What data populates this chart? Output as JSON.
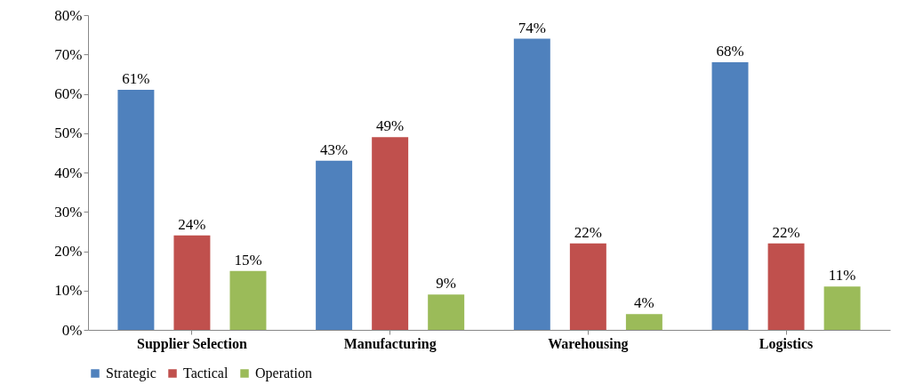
{
  "chart_data": {
    "type": "bar",
    "categories": [
      "Supplier Selection",
      "Manufacturing",
      "Warehousing",
      "Logistics"
    ],
    "series": [
      {
        "name": "Strategic",
        "color": "#4f81bd",
        "values": [
          61,
          43,
          74,
          68
        ],
        "value_labels": [
          "61%",
          "43%",
          "74%",
          "68%"
        ]
      },
      {
        "name": "Tactical",
        "color": "#c0504d",
        "values": [
          24,
          49,
          22,
          22
        ],
        "value_labels": [
          "24%",
          "49%",
          "22%",
          "22%"
        ]
      },
      {
        "name": "Operation",
        "color": "#9bbb59",
        "values": [
          15,
          9,
          4,
          11
        ],
        "value_labels": [
          "15%",
          "9%",
          "4%",
          "11%"
        ]
      }
    ],
    "ylim": [
      0,
      80
    ],
    "yticks": [
      {
        "value": 0,
        "label": "0%"
      },
      {
        "value": 10,
        "label": "10%"
      },
      {
        "value": 20,
        "label": "20%"
      },
      {
        "value": 30,
        "label": "30%"
      },
      {
        "value": 40,
        "label": "40%"
      },
      {
        "value": 50,
        "label": "50%"
      },
      {
        "value": 60,
        "label": "60%"
      },
      {
        "value": 70,
        "label": "70%"
      },
      {
        "value": 80,
        "label": "80%"
      }
    ],
    "grid": false,
    "legend": "bottom"
  }
}
